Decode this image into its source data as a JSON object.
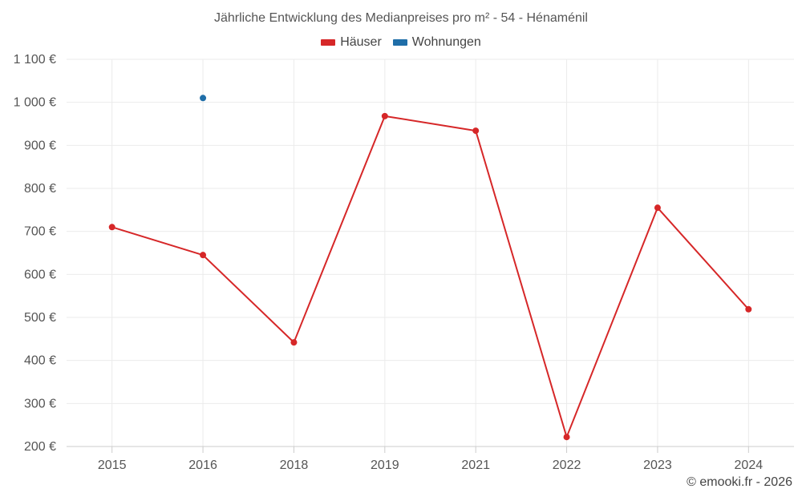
{
  "title": "Jährliche Entwicklung des Medianpreises pro m² - 54 - Hénaménil",
  "credit": "© emooki.fr - 2026",
  "colors": {
    "haeuser": "#d62728",
    "wohnungen": "#1f6ea8",
    "grid": "#ebebeb",
    "axis": "#cccccc"
  },
  "chart_data": {
    "type": "line",
    "title": "Jährliche Entwicklung des Medianpreises pro m² - 54 - Hénaménil",
    "xlabel": "",
    "ylabel": "",
    "categories": [
      "2015",
      "2016",
      "2018",
      "2019",
      "2021",
      "2022",
      "2023",
      "2024"
    ],
    "ylim": [
      200,
      1100
    ],
    "yticks": [
      200,
      300,
      400,
      500,
      600,
      700,
      800,
      900,
      1000,
      1100
    ],
    "ytick_labels": [
      "200 €",
      "300 €",
      "400 €",
      "500 €",
      "600 €",
      "700 €",
      "800 €",
      "900 €",
      "1 000 €",
      "1 100 €"
    ],
    "legend_position": "top-center",
    "grid": true,
    "series": [
      {
        "name": "Häuser",
        "color": "#d62728",
        "values": [
          710,
          645,
          442,
          968,
          934,
          222,
          755,
          519
        ]
      },
      {
        "name": "Wohnungen",
        "color": "#1f6ea8",
        "values": [
          null,
          1010,
          null,
          null,
          null,
          null,
          null,
          null
        ]
      }
    ]
  }
}
